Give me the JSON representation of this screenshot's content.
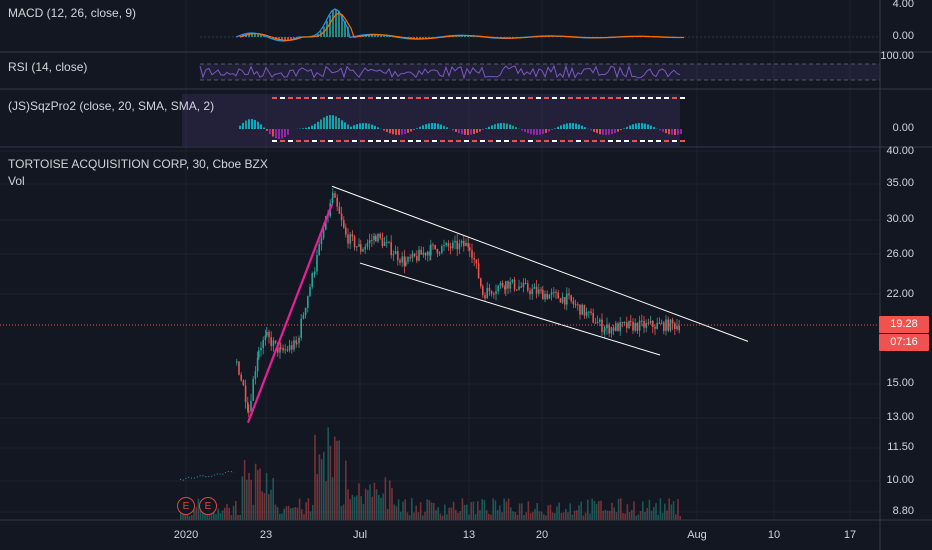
{
  "panes": {
    "macd": {
      "label": "MACD (12, 26, close, 9)",
      "axis": [
        "4.00",
        "0.00"
      ]
    },
    "rsi": {
      "label": "RSI (14, close)",
      "axis": [
        "100.00"
      ]
    },
    "sqz": {
      "label": "(JS)SqzPro2 (close, 20, SMA, SMA, 2)",
      "axis": [
        "0.00"
      ]
    },
    "main": {
      "symbol_label": "TORTOISE ACQUISITION CORP, 30, Cboe BZX",
      "vol_label": "Vol",
      "axis": [
        "40.00",
        "35.00",
        "30.00",
        "26.00",
        "22.00",
        "15.00",
        "13.00",
        "11.50",
        "10.00",
        "8.80"
      ],
      "last_price": "19.28",
      "countdown": "07:16"
    }
  },
  "time_axis": [
    "2020",
    "23",
    "Jul",
    "13",
    "20",
    "Aug",
    "10",
    "17"
  ],
  "earnings_markers": [
    "E",
    "E"
  ],
  "colors": {
    "background": "#131722",
    "up": "#26a69a",
    "down": "#ef5350",
    "macd": "#2196f3",
    "signal": "#ff6d00",
    "rsi": "#7e57c2",
    "trend_line": "#ffffff",
    "pump_line": "#e91e9b"
  },
  "chart_data": {
    "type": "candlestick",
    "interval": "30",
    "price_scale": "log",
    "ylim": [
      8.5,
      41
    ],
    "close_path": [
      {
        "t": "Jun 18",
        "v": 16.5
      },
      {
        "t": "Jun 19",
        "v": 13.5
      },
      {
        "t": "Jun 22",
        "v": 17.5
      },
      {
        "t": "Jun 23",
        "v": 18.3
      },
      {
        "t": "Jun 24",
        "v": 17.2
      },
      {
        "t": "Jun 25",
        "v": 17.8
      },
      {
        "t": "Jun 26",
        "v": 24.5
      },
      {
        "t": "Jun 29",
        "v": 33.0
      },
      {
        "t": "Jun 30",
        "v": 28.0
      },
      {
        "t": "Jul 1",
        "v": 26.5
      },
      {
        "t": "Jul 2",
        "v": 28.0
      },
      {
        "t": "Jul 7",
        "v": 25.0
      },
      {
        "t": "Jul 9",
        "v": 26.5
      },
      {
        "t": "Jul 13",
        "v": 27.0
      },
      {
        "t": "Jul 14",
        "v": 22.0
      },
      {
        "t": "Jul 16",
        "v": 23.0
      },
      {
        "t": "Jul 20",
        "v": 22.0
      },
      {
        "t": "Jul 22",
        "v": 21.5
      },
      {
        "t": "Jul 24",
        "v": 19.0
      },
      {
        "t": "Jul 27",
        "v": 19.2
      },
      {
        "t": "Jul 28",
        "v": 19.3
      }
    ],
    "trend_lines": [
      {
        "name": "upper",
        "from": {
          "t": "Jun 29",
          "v": 34.5
        },
        "to": {
          "t": "Aug 5",
          "v": 18.0
        }
      },
      {
        "name": "lower",
        "from": {
          "t": "Jul 1",
          "v": 25.0
        },
        "to": {
          "t": "Jul 31",
          "v": 17.0
        }
      },
      {
        "name": "pump",
        "from": {
          "t": "Jun 19",
          "v": 12.8
        },
        "to": {
          "t": "Jun 29",
          "v": 32.0
        }
      }
    ]
  }
}
